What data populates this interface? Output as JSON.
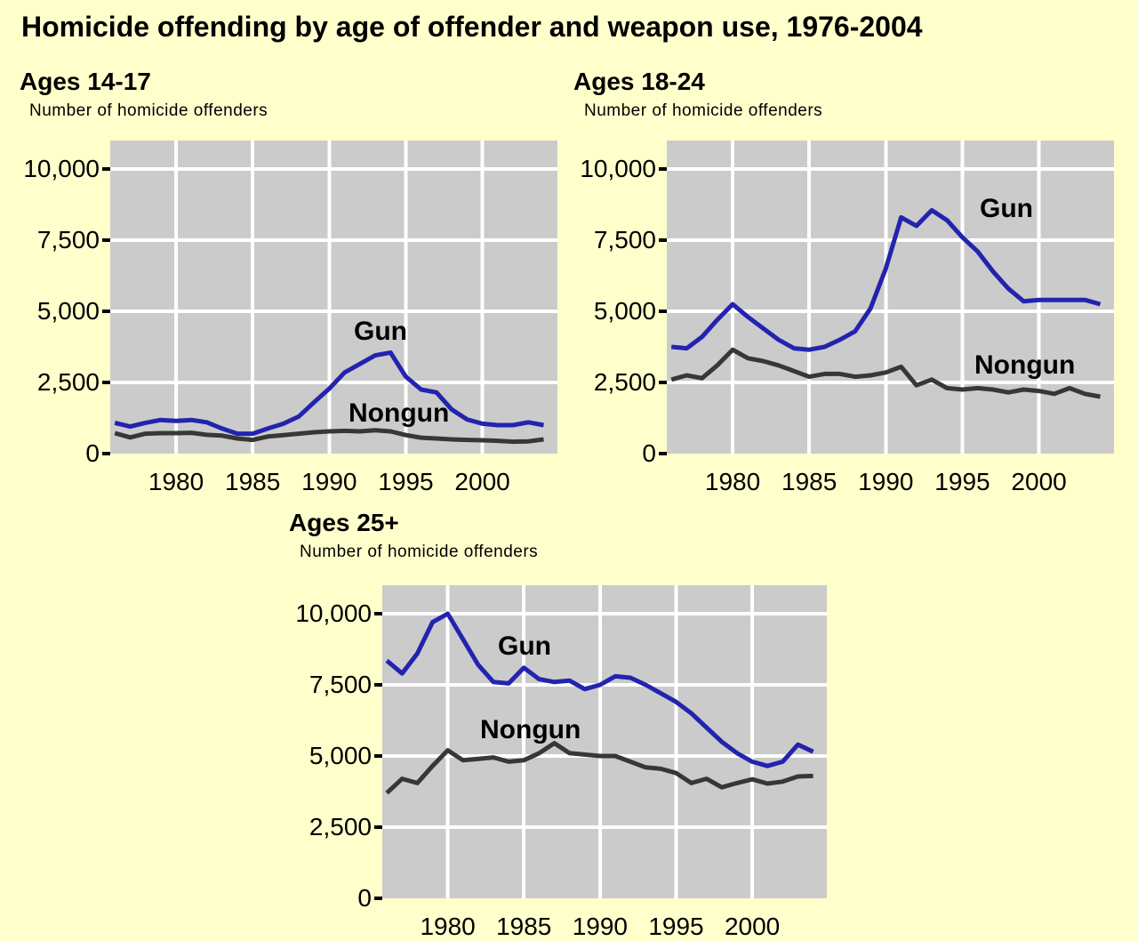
{
  "page": {
    "title": "Homicide offending by age of offender and weapon use, 1976-2004"
  },
  "colors": {
    "background": "#FFFFCC",
    "plot_background": "#CBCBCB",
    "grid": "#FFFFFF",
    "gun": "#2323AF",
    "nongun": "#373737",
    "text": "#000000"
  },
  "chart_data": [
    {
      "type": "line",
      "title": "Ages 14-17",
      "ylabel": "Number of homicide offenders",
      "x_unit": "year",
      "x": [
        1976,
        1977,
        1978,
        1979,
        1980,
        1981,
        1982,
        1983,
        1984,
        1985,
        1986,
        1987,
        1988,
        1989,
        1990,
        1991,
        1992,
        1993,
        1994,
        1995,
        1996,
        1997,
        1998,
        1999,
        2000,
        2001,
        2002,
        2003,
        2004
      ],
      "series": [
        {
          "name": "Gun",
          "color_key": "gun",
          "values": [
            1080,
            950,
            1080,
            1180,
            1150,
            1180,
            1100,
            880,
            700,
            700,
            880,
            1050,
            1300,
            1800,
            2280,
            2850,
            3150,
            3450,
            3550,
            2700,
            2250,
            2150,
            1550,
            1200,
            1050,
            1000,
            1000,
            1100,
            1000
          ]
        },
        {
          "name": "Nongun",
          "color_key": "nongun",
          "values": [
            720,
            570,
            700,
            720,
            720,
            730,
            660,
            630,
            530,
            480,
            600,
            650,
            700,
            750,
            780,
            800,
            780,
            820,
            780,
            650,
            560,
            530,
            500,
            480,
            470,
            450,
            420,
            430,
            500
          ]
        }
      ],
      "ylim": [
        0,
        11000
      ],
      "yticks": [
        {
          "value": 10000,
          "label": "10,000"
        },
        {
          "value": 7500,
          "label": "7,500"
        },
        {
          "value": 5000,
          "label": "5,000"
        },
        {
          "value": 2500,
          "label": "2,500"
        },
        {
          "value": 0,
          "label": "0"
        }
      ],
      "xticks": [
        {
          "value": 1980,
          "label": "1980"
        },
        {
          "value": 1985,
          "label": "1985"
        },
        {
          "value": 1990,
          "label": "1990"
        },
        {
          "value": 1995,
          "label": "1995"
        },
        {
          "value": 2000,
          "label": "2000"
        }
      ],
      "grid": true,
      "legend": "inline-labels"
    },
    {
      "type": "line",
      "title": "Ages 18-24",
      "ylabel": "Number of homicide offenders",
      "x_unit": "year",
      "x": [
        1976,
        1977,
        1978,
        1979,
        1980,
        1981,
        1982,
        1983,
        1984,
        1985,
        1986,
        1987,
        1988,
        1989,
        1990,
        1991,
        1992,
        1993,
        1994,
        1995,
        1996,
        1997,
        1998,
        1999,
        2000,
        2001,
        2002,
        2003,
        2004
      ],
      "series": [
        {
          "name": "Gun",
          "color_key": "gun",
          "values": [
            3750,
            3700,
            4100,
            4700,
            5250,
            4800,
            4400,
            4000,
            3700,
            3650,
            3750,
            4000,
            4300,
            5100,
            6500,
            8300,
            8000,
            8550,
            8200,
            7600,
            7100,
            6400,
            5800,
            5350,
            5400,
            5400,
            5400,
            5400,
            5250
          ]
        },
        {
          "name": "Nongun",
          "color_key": "nongun",
          "values": [
            2600,
            2750,
            2650,
            3100,
            3650,
            3350,
            3250,
            3100,
            2900,
            2700,
            2800,
            2800,
            2700,
            2750,
            2850,
            3050,
            2400,
            2600,
            2300,
            2250,
            2300,
            2250,
            2150,
            2250,
            2200,
            2100,
            2300,
            2100,
            2000
          ]
        }
      ],
      "ylim": [
        0,
        11000
      ],
      "yticks": [
        {
          "value": 10000,
          "label": "10,000"
        },
        {
          "value": 7500,
          "label": "7,500"
        },
        {
          "value": 5000,
          "label": "5,000"
        },
        {
          "value": 2500,
          "label": "2,500"
        },
        {
          "value": 0,
          "label": "0"
        }
      ],
      "xticks": [
        {
          "value": 1980,
          "label": "1980"
        },
        {
          "value": 1985,
          "label": "1985"
        },
        {
          "value": 1990,
          "label": "1990"
        },
        {
          "value": 1995,
          "label": "1995"
        },
        {
          "value": 2000,
          "label": "2000"
        }
      ],
      "grid": true,
      "legend": "inline-labels"
    },
    {
      "type": "line",
      "title": "Ages 25+",
      "ylabel": "Number of homicide offenders",
      "x_unit": "year",
      "x": [
        1976,
        1977,
        1978,
        1979,
        1980,
        1981,
        1982,
        1983,
        1984,
        1985,
        1986,
        1987,
        1988,
        1989,
        1990,
        1991,
        1992,
        1993,
        1994,
        1995,
        1996,
        1997,
        1998,
        1999,
        2000,
        2001,
        2002,
        2003,
        2004
      ],
      "series": [
        {
          "name": "Gun",
          "color_key": "gun",
          "values": [
            8350,
            7900,
            8600,
            9700,
            10000,
            9100,
            8200,
            7600,
            7550,
            8100,
            7700,
            7600,
            7650,
            7350,
            7500,
            7800,
            7750,
            7500,
            7200,
            6900,
            6500,
            6000,
            5500,
            5100,
            4800,
            4650,
            4800,
            5400,
            5150
          ]
        },
        {
          "name": "Nongun",
          "color_key": "nongun",
          "values": [
            3700,
            4200,
            4050,
            4650,
            5200,
            4850,
            4900,
            4950,
            4800,
            4850,
            5100,
            5450,
            5100,
            5050,
            5000,
            5000,
            4800,
            4600,
            4550,
            4400,
            4050,
            4200,
            3900,
            4050,
            4180,
            4030,
            4100,
            4280,
            4300
          ]
        }
      ],
      "ylim": [
        0,
        11000
      ],
      "yticks": [
        {
          "value": 10000,
          "label": "10,000"
        },
        {
          "value": 7500,
          "label": "7,500"
        },
        {
          "value": 5000,
          "label": "5,000"
        },
        {
          "value": 2500,
          "label": "2,500"
        },
        {
          "value": 0,
          "label": "0"
        }
      ],
      "xticks": [
        {
          "value": 1980,
          "label": "1980"
        },
        {
          "value": 1985,
          "label": "1985"
        },
        {
          "value": 1990,
          "label": "1990"
        },
        {
          "value": 1995,
          "label": "1995"
        },
        {
          "value": 2000,
          "label": "2000"
        }
      ],
      "grid": true,
      "legend": "inline-labels"
    }
  ]
}
